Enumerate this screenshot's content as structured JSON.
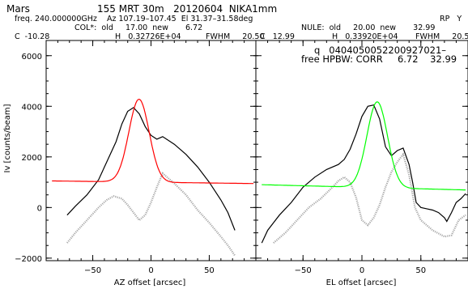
{
  "header": {
    "target": "Mars",
    "scan_info": "155 MRT 30m   20120604  NIKA1mm",
    "rp": "RP   Y",
    "freq_line": "freq. 240.000000GHz    Az 107.19–107.45  El 31.37–31.58deg",
    "col_line": "COL*:  old     17.00  new       6.72",
    "nule_line": "NULE:  old     20.00  new       32.99",
    "left_c": "C  -10.28",
    "left_h": "H   0.32726E+04",
    "left_fwhm": "FWHM     20.50",
    "right_c": "C   12.99",
    "right_h": "H   0.33920E+04",
    "right_fwhm": "FWHM     20.50",
    "scan_id": "q   0404050052200927021–",
    "hpbw_line": "free HPBW: CORR     6.72    32.99"
  },
  "chart_data": [
    {
      "type": "line",
      "panel": "left",
      "xlabel": "AZ offset [arcsec]",
      "ylabel": "Iv [counts/beam]",
      "xlim": [
        -90,
        90
      ],
      "ylim": [
        -2100,
        6600
      ],
      "xticks": [
        -50,
        0,
        50
      ],
      "yticks": [
        -2000,
        0,
        2000,
        4000,
        6000
      ],
      "xtick_labels": [
        "−50",
        "0",
        "50"
      ],
      "ytick_labels": [
        "−2000",
        "0",
        "2000",
        "4000",
        "6000"
      ],
      "series": [
        {
          "role": "data",
          "style": "solid",
          "color": "#000000",
          "x": [
            -72,
            -65,
            -55,
            -45,
            -38,
            -30,
            -25,
            -20,
            -15,
            -10,
            -5,
            0,
            5,
            10,
            20,
            30,
            40,
            50,
            60,
            66,
            72
          ],
          "y": [
            -300,
            50,
            500,
            1100,
            1800,
            2600,
            3300,
            3800,
            3950,
            3700,
            3200,
            2850,
            2700,
            2800,
            2500,
            2100,
            1600,
            1000,
            300,
            -200,
            -900
          ]
        },
        {
          "role": "residual",
          "style": "dotted",
          "color": "#a8a8a8",
          "x": [
            -72,
            -65,
            -55,
            -45,
            -38,
            -32,
            -25,
            -20,
            -15,
            -10,
            -5,
            0,
            5,
            10,
            15,
            20,
            30,
            40,
            50,
            60,
            66,
            72
          ],
          "y": [
            -1400,
            -1000,
            -500,
            0,
            300,
            450,
            350,
            100,
            -200,
            -500,
            -300,
            200,
            800,
            1350,
            1150,
            950,
            500,
            -100,
            -600,
            -1150,
            -1500,
            -1900
          ]
        },
        {
          "role": "gaussian-fit",
          "style": "solid",
          "color": "#ff0000",
          "fit": {
            "center": -10.28,
            "peak": 3272.6,
            "fwhm": 20.5,
            "baseline": 1000,
            "slope": -0.6
          },
          "x_range": [
            -85,
            88
          ]
        }
      ]
    },
    {
      "type": "line",
      "panel": "right",
      "xlabel": "EL offset [arcsec]",
      "ylabel": "",
      "xlim": [
        -90,
        90
      ],
      "ylim": [
        -2100,
        6600
      ],
      "xticks": [
        -50,
        0,
        50
      ],
      "yticks": [
        -2000,
        0,
        2000,
        4000,
        6000
      ],
      "xtick_labels": [
        "−50",
        "0",
        "50"
      ],
      "ytick_labels": [],
      "series": [
        {
          "role": "data",
          "style": "solid",
          "color": "#000000",
          "x": [
            -85,
            -80,
            -75,
            -70,
            -60,
            -50,
            -40,
            -30,
            -20,
            -15,
            -10,
            -5,
            0,
            5,
            10,
            15,
            20,
            25,
            30,
            35,
            40,
            43,
            46,
            50,
            55,
            60,
            65,
            70,
            72,
            76,
            80,
            84,
            88
          ],
          "y": [
            -1400,
            -900,
            -600,
            -300,
            200,
            800,
            1200,
            1500,
            1700,
            1900,
            2300,
            2900,
            3600,
            4000,
            4050,
            3500,
            2400,
            2050,
            2250,
            2350,
            1700,
            1000,
            200,
            0,
            -50,
            -100,
            -200,
            -400,
            -550,
            -200,
            200,
            350,
            550
          ]
        },
        {
          "role": "residual",
          "style": "dotted",
          "color": "#a8a8a8",
          "x": [
            -75,
            -65,
            -55,
            -45,
            -35,
            -25,
            -20,
            -15,
            -10,
            -5,
            0,
            5,
            10,
            15,
            20,
            25,
            30,
            35,
            40,
            45,
            50,
            60,
            70,
            76,
            82,
            88
          ],
          "y": [
            -1400,
            -1000,
            -500,
            0,
            350,
            800,
            1050,
            1200,
            1000,
            400,
            -500,
            -700,
            -400,
            100,
            800,
            1400,
            1800,
            2100,
            1300,
            0,
            -500,
            -900,
            -1150,
            -1100,
            -500,
            -300
          ]
        },
        {
          "role": "gaussian-fit",
          "style": "solid",
          "color": "#00ff00",
          "fit": {
            "center": 12.99,
            "peak": 3392.0,
            "fwhm": 20.5,
            "baseline": 800,
            "slope": -1.2
          },
          "x_range": [
            -85,
            88
          ]
        }
      ]
    }
  ]
}
